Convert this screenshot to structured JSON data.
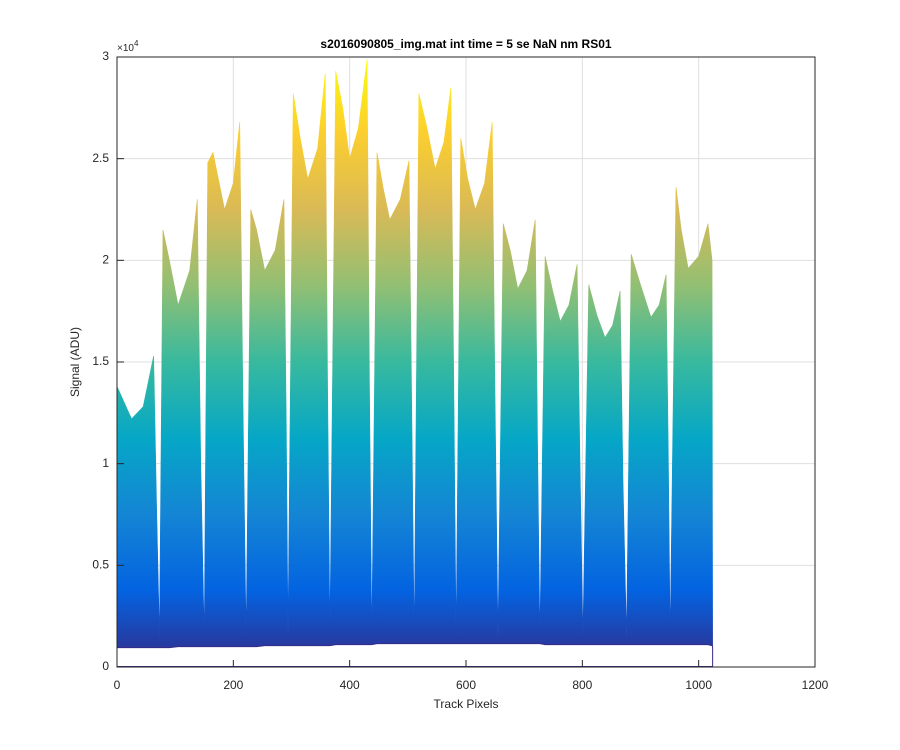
{
  "chart_data": {
    "type": "area",
    "title": "s2016090805_img.mat int time = 5 se  NaN nm RS01",
    "xlabel": "Track Pixels",
    "ylabel": "Signal (ADU)",
    "y_multiplier": {
      "base": "×10",
      "exponent": "4"
    },
    "xlim": [
      0,
      1200
    ],
    "xticks": [
      0,
      200,
      400,
      600,
      800,
      1000,
      1200
    ],
    "ylim": [
      0,
      30000
    ],
    "yticks": [
      0,
      {
        "value": 5000,
        "label": "0.5"
      },
      {
        "value": 10000,
        "label": "1"
      },
      {
        "value": 15000,
        "label": "1.5"
      },
      {
        "value": 20000,
        "label": "2"
      },
      {
        "value": 25000,
        "label": "2.5"
      },
      {
        "value": 30000,
        "label": "3"
      }
    ],
    "grid": true,
    "colormap": [
      "#352a87",
      "#0363e1",
      "#1485d4",
      "#06a7c6",
      "#38b99e",
      "#92bf73",
      "#d9ba56",
      "#fcce2e",
      "#f9fb0e"
    ],
    "x": [
      0,
      25,
      45,
      63,
      68,
      73,
      79,
      90,
      105,
      125,
      138,
      144,
      150,
      156,
      165,
      185,
      200,
      211,
      217,
      222,
      230,
      240,
      254,
      272,
      287,
      291,
      294,
      303,
      315,
      328,
      345,
      358,
      362,
      366,
      376,
      388,
      400,
      415,
      430,
      434,
      438,
      447,
      458,
      469,
      487,
      502,
      507,
      511,
      519,
      533,
      547,
      562,
      574,
      579,
      583,
      591,
      603,
      616,
      632,
      645,
      650,
      655,
      664,
      676,
      689,
      705,
      719,
      723,
      727,
      736,
      749,
      762,
      777,
      791,
      796,
      801,
      811,
      825,
      839,
      852,
      865,
      870,
      876,
      884,
      900,
      918,
      932,
      944,
      948,
      951,
      961,
      970,
      982,
      1000,
      1016,
      1023,
      1024
    ],
    "series": [
      {
        "values": [
          13800,
          12200,
          12800,
          15300,
          8000,
          1500,
          21500,
          20000,
          17800,
          19500,
          23000,
          10000,
          1500,
          24800,
          25300,
          22500,
          23800,
          26800,
          12000,
          1500,
          22500,
          21500,
          19500,
          20500,
          23000,
          12000,
          1700,
          28200,
          26000,
          24000,
          25500,
          29200,
          14000,
          1700,
          29300,
          27500,
          25000,
          26500,
          29900,
          14000,
          1500,
          25300,
          23500,
          22000,
          23000,
          24900,
          12000,
          1500,
          28200,
          26500,
          24500,
          25800,
          28500,
          14000,
          1500,
          26000,
          24000,
          22500,
          23800,
          26800,
          13000,
          1500,
          21800,
          20500,
          18600,
          19500,
          22000,
          11000,
          1500,
          20200,
          18500,
          17000,
          17800,
          19800,
          10000,
          1500,
          18800,
          17300,
          16200,
          16800,
          18500,
          9000,
          1500,
          20300,
          18800,
          17200,
          17800,
          19300,
          10000,
          1500,
          23600,
          21500,
          19600,
          20200,
          21800,
          20000,
          1000
        ]
      }
    ],
    "lower": [
      950,
      950,
      950,
      950,
      950,
      950,
      950,
      950,
      1000,
      1000,
      1000,
      1000,
      1000,
      1000,
      1000,
      1000,
      1000,
      1000,
      1000,
      1000,
      1000,
      1000,
      1050,
      1050,
      1050,
      1050,
      1050,
      1050,
      1050,
      1050,
      1050,
      1050,
      1050,
      1050,
      1100,
      1100,
      1100,
      1100,
      1100,
      1100,
      1100,
      1150,
      1150,
      1150,
      1150,
      1150,
      1150,
      1150,
      1150,
      1150,
      1150,
      1150,
      1150,
      1150,
      1150,
      1150,
      1150,
      1150,
      1150,
      1150,
      1150,
      1150,
      1150,
      1150,
      1150,
      1150,
      1150,
      1150,
      1150,
      1100,
      1100,
      1100,
      1100,
      1100,
      1100,
      1100,
      1100,
      1100,
      1100,
      1100,
      1100,
      1100,
      1100,
      1100,
      1100,
      1100,
      1100,
      1100,
      1100,
      1100,
      1100,
      1100,
      1100,
      1100,
      1100,
      1050,
      1000
    ]
  }
}
